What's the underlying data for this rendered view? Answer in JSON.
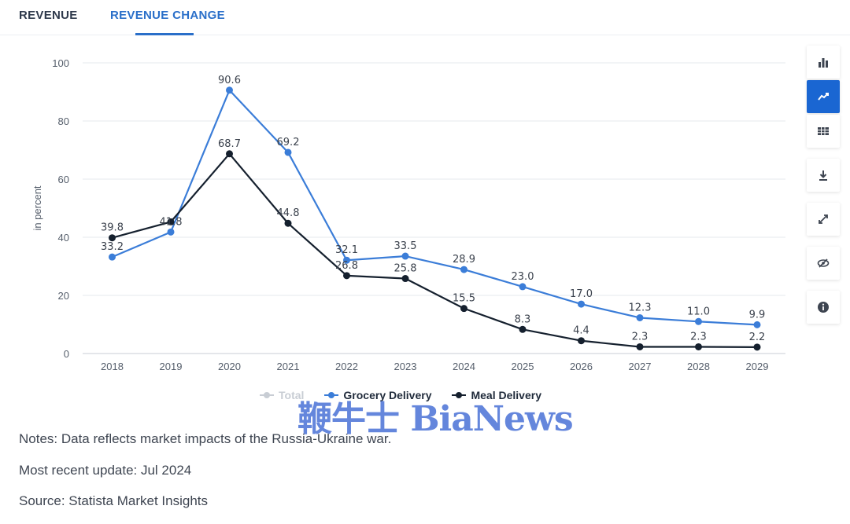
{
  "tabs": {
    "revenue": "REVENUE",
    "revenue_change": "REVENUE CHANGE"
  },
  "colors": {
    "grocery": "#3b7dd8",
    "meal": "#15202e",
    "total": "#c8cdd4",
    "accent": "#1a66d2"
  },
  "toolbar": {
    "icons": [
      "bar-chart-icon",
      "line-chart-icon",
      "table-icon",
      "download-icon",
      "expand-icon",
      "hide-icon",
      "info-icon"
    ],
    "active": "line-chart-icon"
  },
  "chart_data": {
    "type": "line",
    "ylabel": "in percent",
    "xlabel": "",
    "ylim": [
      0,
      100
    ],
    "yticks": [
      0,
      20,
      40,
      60,
      80,
      100
    ],
    "categories": [
      "2018",
      "2019",
      "2020",
      "2021",
      "2022",
      "2023",
      "2024",
      "2025",
      "2026",
      "2027",
      "2028",
      "2029"
    ],
    "series": [
      {
        "name": "Grocery Delivery",
        "values": [
          33.2,
          41.8,
          90.6,
          69.2,
          32.1,
          33.5,
          28.9,
          23.0,
          17.0,
          12.3,
          11.0,
          9.9
        ],
        "labels": [
          "33.2",
          "41.8",
          "90.6",
          "69.2",
          "32.1",
          "33.5",
          "28.9",
          "23.0",
          "17.0",
          "12.3",
          "11.0",
          "9.9"
        ]
      },
      {
        "name": "Meal Delivery",
        "values": [
          39.8,
          45.3,
          68.7,
          44.8,
          26.8,
          25.8,
          15.5,
          8.3,
          4.4,
          2.3,
          2.3,
          2.2
        ],
        "labels": [
          "39.8",
          "",
          "68.7",
          "44.8",
          "26.8",
          "25.8",
          "15.5",
          "8.3",
          "4.4",
          "2.3",
          "2.3",
          "2.2"
        ]
      }
    ],
    "legend": {
      "position": "bottom",
      "items": [
        "Total",
        "Grocery Delivery",
        "Meal Delivery"
      ],
      "inactive": [
        "Total"
      ]
    },
    "grid": true
  },
  "watermark": "鞭牛士 BiaNews",
  "notes": {
    "note": "Notes: Data reflects market impacts of the Russia-Ukraine war.",
    "update": "Most recent update: Jul 2024",
    "source": "Source: Statista Market Insights"
  }
}
